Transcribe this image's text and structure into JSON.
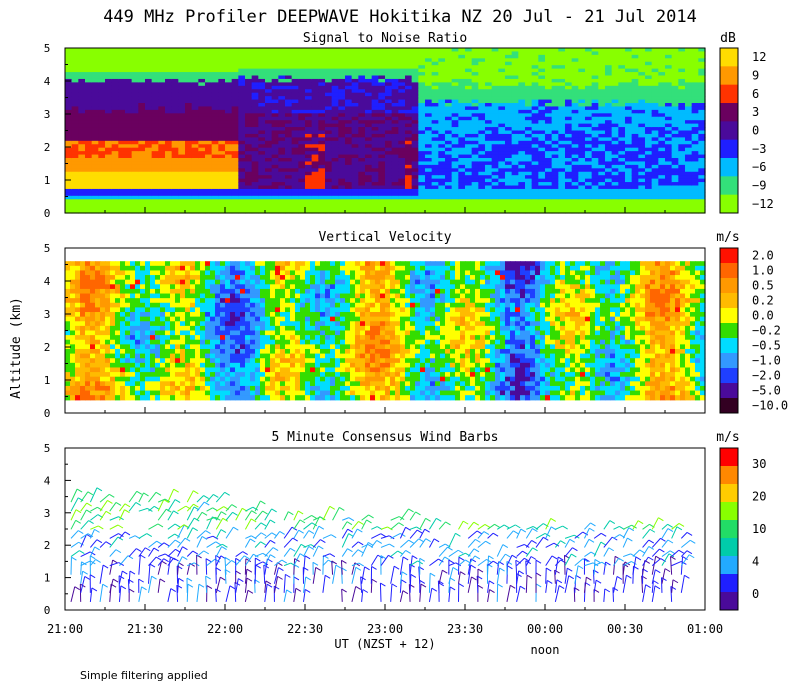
{
  "title": "449 MHz Profiler DEEPWAVE Hokitika NZ 20 Jul - 21 Jul 2014",
  "ylabel": "Altitude (km)",
  "xlabel": "UT (NZST + 12)",
  "noon_label": "noon",
  "footer": "Simple filtering applied",
  "time_ticks": [
    "21:00",
    "21:30",
    "22:00",
    "22:30",
    "23:00",
    "23:30",
    "00:00",
    "00:30",
    "01:00"
  ],
  "altitude_ticks": [
    0,
    1,
    2,
    3,
    4,
    5
  ],
  "chart_data": [
    {
      "type": "heatmap",
      "title": "Signal to Noise Ratio",
      "unit": "dB",
      "ylim": [
        0,
        5
      ],
      "colorbar": {
        "labels": [
          "12",
          "9",
          "6",
          "3",
          "0",
          "−3",
          "−6",
          "−9",
          "−12"
        ],
        "colors": [
          "#ffdd00",
          "#ff9900",
          "#ff3300",
          "#6a005f",
          "#4a0a9a",
          "#1f1fff",
          "#00bbff",
          "#33e07a",
          "#88ff00"
        ]
      },
      "bands": [
        {
          "x": [
            0,
            0.27
          ],
          "y": [
            0.55,
            0.75
          ],
          "level": 5
        },
        {
          "x": [
            0,
            0.27
          ],
          "y": [
            0.75,
            1.25
          ],
          "level": 0
        },
        {
          "x": [
            0,
            0.27
          ],
          "y": [
            1.25,
            1.65
          ],
          "level": 1
        },
        {
          "x": [
            0,
            0.27
          ],
          "y": [
            1.65,
            2.15
          ],
          "level": 2
        },
        {
          "x": [
            0,
            0.27
          ],
          "y": [
            2.15,
            3.0
          ],
          "level": 3
        },
        {
          "x": [
            0,
            0.55
          ],
          "y": [
            3.0,
            3.9
          ],
          "level": 4
        },
        {
          "x": [
            0.27,
            0.55
          ],
          "y": [
            0.8,
            3.0
          ],
          "level": 4
        },
        {
          "x": [
            0.55,
            1
          ],
          "y": [
            0.7,
            2.2
          ],
          "level": 5
        },
        {
          "x": [
            0.55,
            1
          ],
          "y": [
            2.2,
            3.2
          ],
          "level": 6
        }
      ]
    },
    {
      "type": "heatmap",
      "title": "Vertical Velocity",
      "unit": "m/s",
      "ylim": [
        0,
        5
      ],
      "colorbar": {
        "labels": [
          "2.0",
          "1.0",
          "0.5",
          "0.2",
          "0.0",
          "−0.2",
          "−0.5",
          "−1.0",
          "−2.0",
          "−5.0",
          "−10.0"
        ],
        "colors": [
          "#ff1100",
          "#ff6600",
          "#ff9900",
          "#ffbb00",
          "#ffff00",
          "#33dd00",
          "#00ddff",
          "#3399ff",
          "#1f3fff",
          "#4a0a9a",
          "#330022"
        ]
      },
      "data_ylim": [
        0.4,
        4.6
      ]
    },
    {
      "type": "wind_barbs",
      "title": "5 Minute Consensus Wind Barbs",
      "unit": "m/s",
      "ylim": [
        0,
        5
      ],
      "colorbar": {
        "labels": [
          "30",
          "20",
          "10",
          "4",
          "0"
        ],
        "colors": [
          "#ff0000",
          "#ff8800",
          "#ffcc00",
          "#88ff00",
          "#22dd66",
          "#00ccaa",
          "#22aaff",
          "#1f1fff",
          "#4a0a9a"
        ]
      },
      "speed_ranges": [
        {
          "y": [
            0.2,
            1.2
          ],
          "speed": [
            0,
            8
          ]
        },
        {
          "y": [
            1.2,
            2.4
          ],
          "speed": [
            4,
            12
          ]
        },
        {
          "y": [
            2.4,
            3.6
          ],
          "speed": [
            10,
            22
          ]
        }
      ]
    }
  ]
}
